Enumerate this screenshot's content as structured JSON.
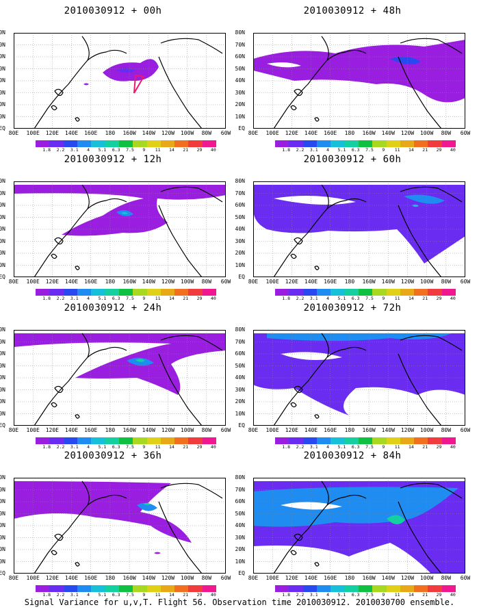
{
  "panels": [
    {
      "title": "2010030912 + 00h"
    },
    {
      "title": "2010030912 + 48h"
    },
    {
      "title": "2010030912 + 12h"
    },
    {
      "title": "2010030912 + 60h"
    },
    {
      "title": "2010030912 + 24h"
    },
    {
      "title": "2010030912 + 72h"
    },
    {
      "title": "2010030912 + 36h"
    },
    {
      "title": "2010030912 + 84h"
    }
  ],
  "lat_labels": [
    "80N",
    "70N",
    "60N",
    "50N",
    "40N",
    "30N",
    "20N",
    "10N",
    "EQ"
  ],
  "lon_labels": [
    "80E",
    "100E",
    "120E",
    "140E",
    "160E",
    "180",
    "160W",
    "140W",
    "120W",
    "100W",
    "80W",
    "60W"
  ],
  "colorbar": {
    "colors": [
      "#9a1ee0",
      "#6a2cf0",
      "#2848f0",
      "#1e8cf0",
      "#16c0d8",
      "#14d0a0",
      "#10c040",
      "#a8d820",
      "#e0d018",
      "#e8a818",
      "#f07020",
      "#f03c3c",
      "#f01890"
    ],
    "labels": [
      "1.8",
      "2.2",
      "3.1",
      "4",
      "5.1",
      "6.3",
      "7.5",
      "9",
      "11",
      "14",
      "21",
      "29",
      "40"
    ]
  },
  "caption": "Signal Variance for u,v,T. Flight 56. Observation time 2010030912. 2010030700 ensemble."
}
